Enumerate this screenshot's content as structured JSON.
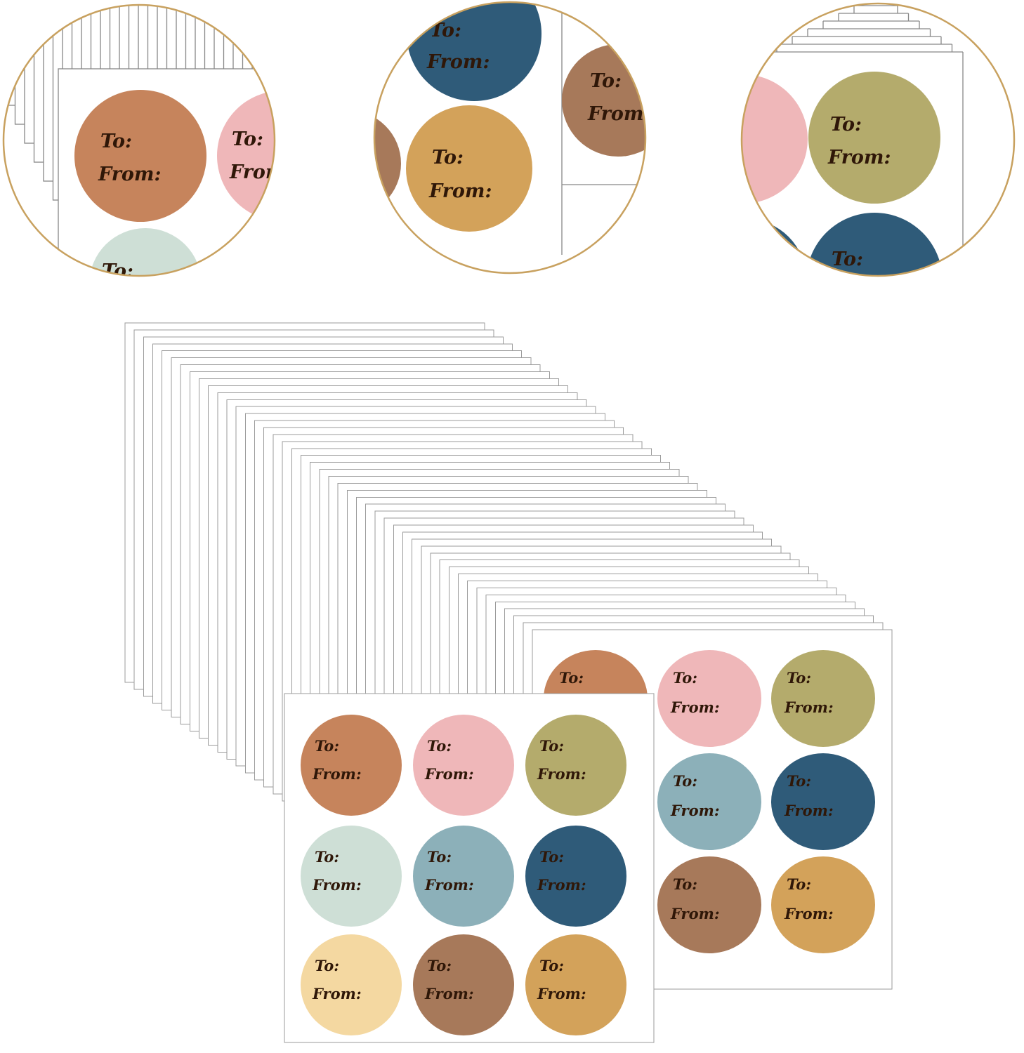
{
  "image_type": "product-photo",
  "product": {
    "subject": "round gift tag stickers on sheets with To / From labels"
  },
  "labels": {
    "to": "To:",
    "from": "From:"
  },
  "palette": {
    "terracotta": "#C6845C",
    "pink": "#EFB7B9",
    "olive": "#B4AB6C",
    "mint": "#CEDFD6",
    "teal": "#8CB0B9",
    "navy": "#2F5B79",
    "cream": "#F4D8A1",
    "brown": "#A7795A",
    "camel": "#D3A25A"
  },
  "colors": {
    "background": "#FFFFFF",
    "sheet_fill": "#FFFFFF",
    "sheet_edge": "#9B9B9B",
    "detail_ring": "#C8A15F",
    "label_text": "#2F1708"
  },
  "stack": {
    "sheet_count": 45
  },
  "sticker_sheet_grid": [
    [
      "terracotta",
      "pink",
      "olive"
    ],
    [
      "mint",
      "teal",
      "navy"
    ],
    [
      "cream",
      "brown",
      "camel"
    ]
  ],
  "sheets": {
    "front": {
      "name": "front-sticker-sheet",
      "stickers": 9
    },
    "back": {
      "name": "back-sticker-sheet",
      "stickers": 9
    }
  },
  "detail_views": [
    {
      "id": "left",
      "visible_stickers": [
        "terracotta",
        "pink",
        "mint"
      ]
    },
    {
      "id": "middle",
      "visible_stickers": [
        "navy",
        "camel",
        "brown",
        "brown"
      ]
    },
    {
      "id": "right",
      "visible_stickers": [
        "navy",
        "pink",
        "olive",
        "navy"
      ]
    }
  ]
}
